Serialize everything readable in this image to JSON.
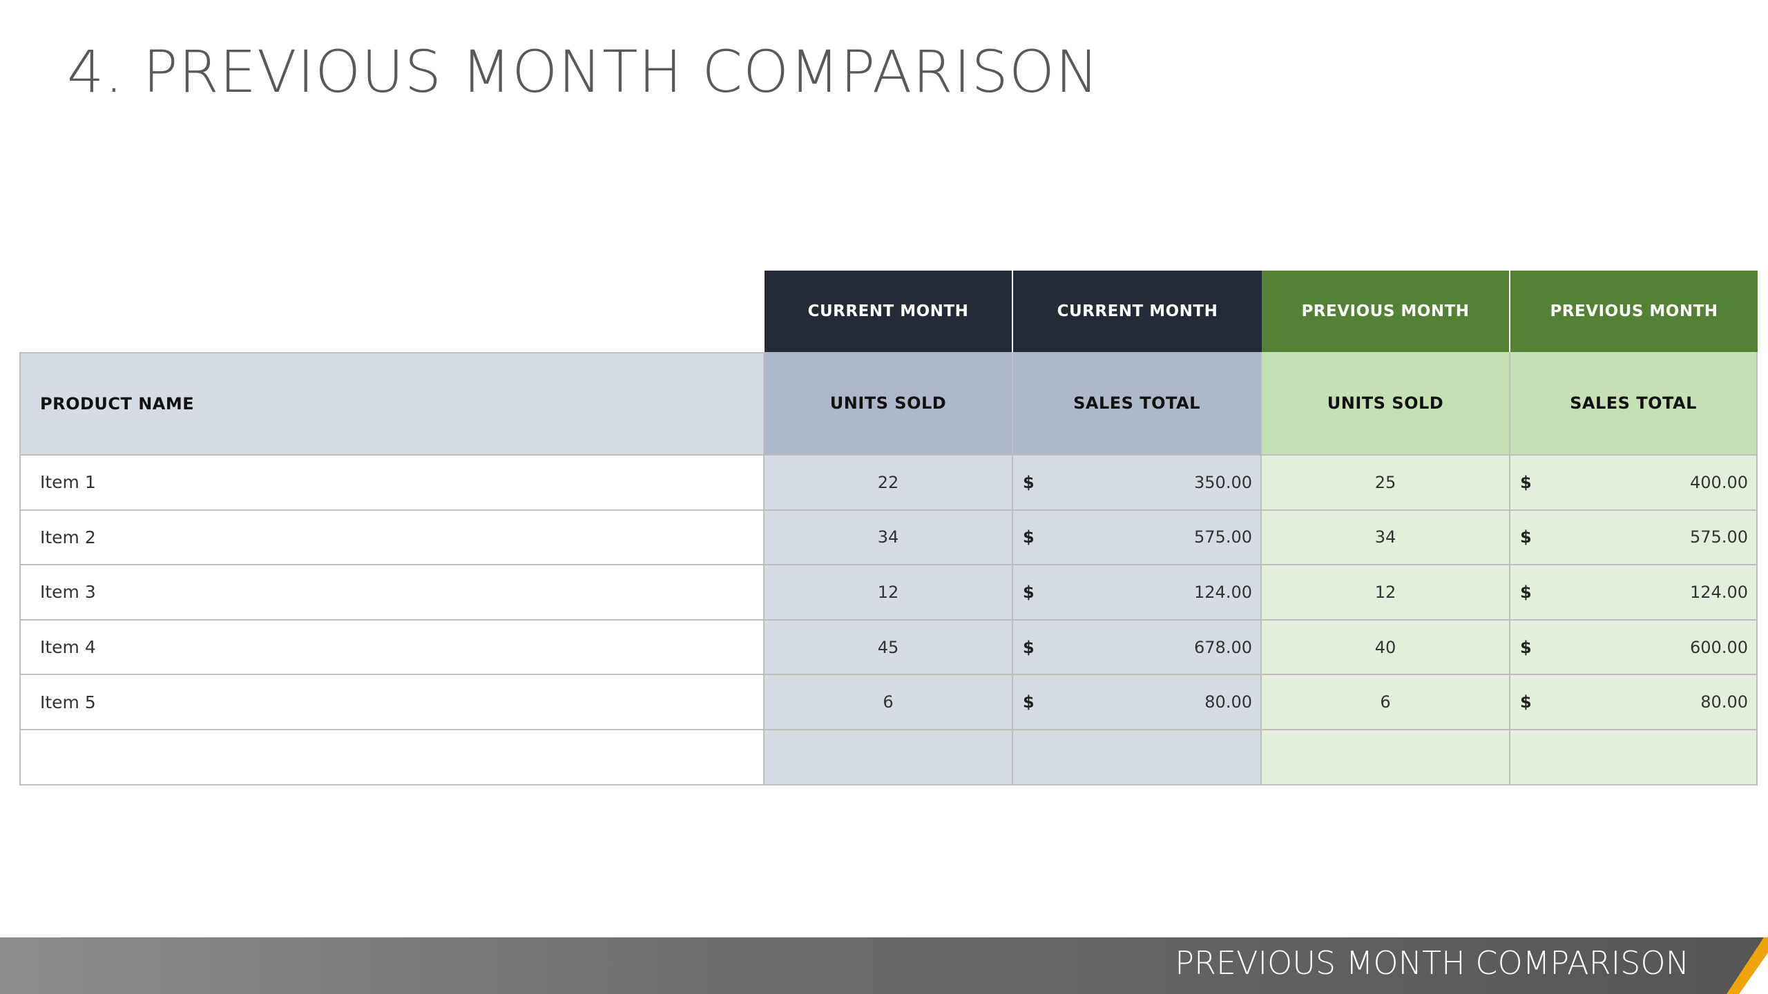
{
  "slide": {
    "title": "4. PREVIOUS MONTH COMPARISON",
    "footer_text": "PREVIOUS MONTH COMPARISON"
  },
  "table": {
    "group_headers": [
      "CURRENT MONTH",
      "CURRENT MONTH",
      "PREVIOUS MONTH",
      "PREVIOUS MONTH"
    ],
    "column_headers": [
      "PRODUCT NAME",
      "UNITS SOLD",
      "SALES TOTAL",
      "UNITS SOLD",
      "SALES TOTAL"
    ],
    "currency_symbol": "$",
    "rows": [
      {
        "name": "Item 1",
        "cur_units": "22",
        "cur_sales": "350.00",
        "prev_units": "25",
        "prev_sales": "400.00"
      },
      {
        "name": "Item 2",
        "cur_units": "34",
        "cur_sales": "575.00",
        "prev_units": "34",
        "prev_sales": "575.00"
      },
      {
        "name": "Item 3",
        "cur_units": "12",
        "cur_sales": "124.00",
        "prev_units": "12",
        "prev_sales": "124.00"
      },
      {
        "name": "Item 4",
        "cur_units": "45",
        "cur_sales": "678.00",
        "prev_units": "40",
        "prev_sales": "600.00"
      },
      {
        "name": "Item 5",
        "cur_units": "6",
        "cur_sales": "80.00",
        "prev_units": "6",
        "prev_sales": "80.00"
      },
      {
        "name": "",
        "cur_units": "",
        "cur_sales": "",
        "prev_units": "",
        "prev_sales": ""
      }
    ]
  },
  "colors": {
    "current_header": "#222b37",
    "previous_header": "#548235",
    "current_body": "#d6dce4",
    "previous_body": "#e2efda",
    "accent": "#f0a30a"
  }
}
